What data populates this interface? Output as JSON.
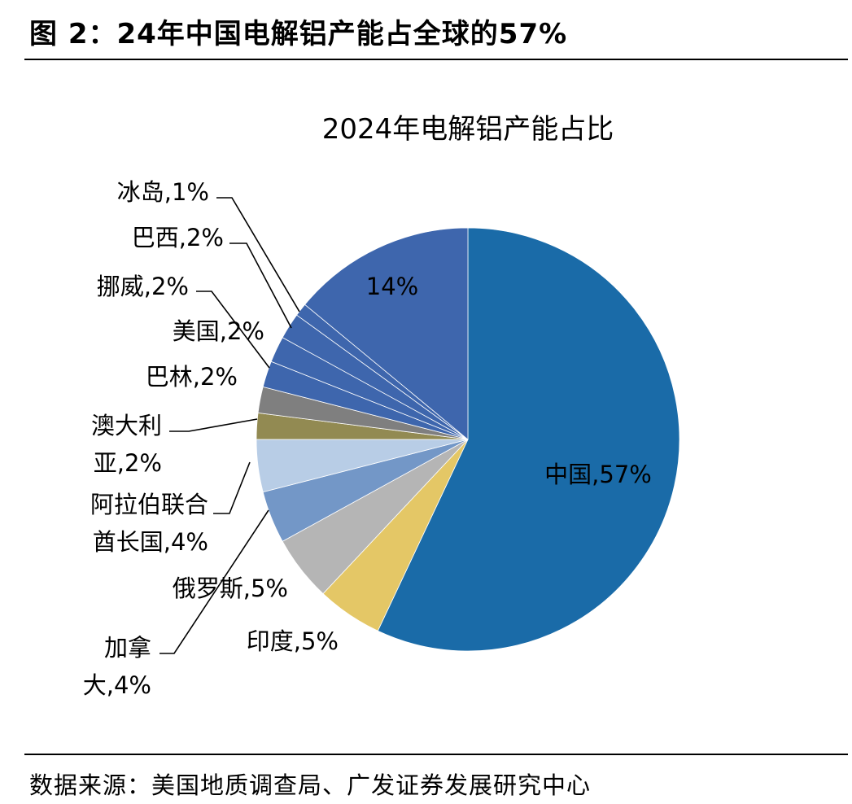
{
  "figure": {
    "title": "图 2：24年中国电解铝产能占全球的57%",
    "source": "数据来源：美国地质调查局、广发证券发展研究中心"
  },
  "chart_data": {
    "type": "pie",
    "title": "2024年电解铝产能占比",
    "start_angle_deg": 0,
    "direction": "clockwise",
    "legend": "none",
    "slices": [
      {
        "label": "中国",
        "value": 57,
        "display": "中国,57%",
        "color": "#1A6BA8"
      },
      {
        "label": "印度",
        "value": 5,
        "display": "印度,5%",
        "color": "#E4C766"
      },
      {
        "label": "俄罗斯",
        "value": 5,
        "display": "俄罗斯,5%",
        "color": "#B5B5B5"
      },
      {
        "label": "加拿大",
        "value": 4,
        "display": [
          "加拿",
          "大,4%"
        ],
        "color": "#7397C7"
      },
      {
        "label": "阿拉伯联合酋长国",
        "value": 4,
        "display": [
          "阿拉伯联合",
          "酋长国,4%"
        ],
        "color": "#B8CDE6"
      },
      {
        "label": "澳大利亚",
        "value": 2,
        "display": [
          "澳大利",
          "亚,2%"
        ],
        "color": "#928A52"
      },
      {
        "label": "巴林",
        "value": 2,
        "display": "巴林,2%",
        "color": "#7F7F7F"
      },
      {
        "label": "美国",
        "value": 2,
        "display": "美国,2%",
        "color": "#3E66AD"
      },
      {
        "label": "挪威",
        "value": 2,
        "display": "挪威,2%",
        "color": "#3E66AD"
      },
      {
        "label": "巴西",
        "value": 2,
        "display": "巴西,2%",
        "color": "#3E66AD"
      },
      {
        "label": "冰岛",
        "value": 1,
        "display": "冰岛,1%",
        "color": "#3E66AD"
      },
      {
        "label": "",
        "value": 14,
        "display": "14%",
        "color": "#3E66AD"
      }
    ]
  }
}
